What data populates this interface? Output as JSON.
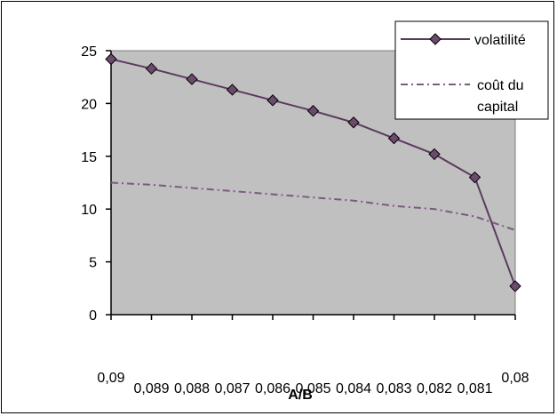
{
  "chart_data": {
    "type": "line",
    "title": "",
    "xlabel": "A/B",
    "ylabel": "",
    "categories": [
      "0,09",
      "0,089",
      "0,088",
      "0,087",
      "0,086",
      "0,085",
      "0,084",
      "0,083",
      "0,082",
      "0,081",
      "0,08"
    ],
    "ylim": [
      0,
      25
    ],
    "y_ticks": [
      "0",
      "5",
      "10",
      "15",
      "20",
      "25"
    ],
    "grid": false,
    "plot_background": "#c0c0c0",
    "legend_position": "top-right",
    "series": [
      {
        "name": "volatilité",
        "values": [
          24.2,
          23.3,
          22.3,
          21.3,
          20.3,
          19.3,
          18.2,
          16.7,
          15.2,
          13.0,
          2.7
        ],
        "color": "#5b3a5e",
        "style": "solid",
        "marker": "diamond"
      },
      {
        "name": "coût du capital",
        "values": [
          12.5,
          12.3,
          12.0,
          11.7,
          11.4,
          11.1,
          10.8,
          10.3,
          10.0,
          9.3,
          8.0
        ],
        "color": "#7a5a7e",
        "style": "dash-dot",
        "marker": "none"
      }
    ]
  },
  "legend": {
    "entries": [
      "volatilité",
      "coût du",
      "capital"
    ]
  }
}
